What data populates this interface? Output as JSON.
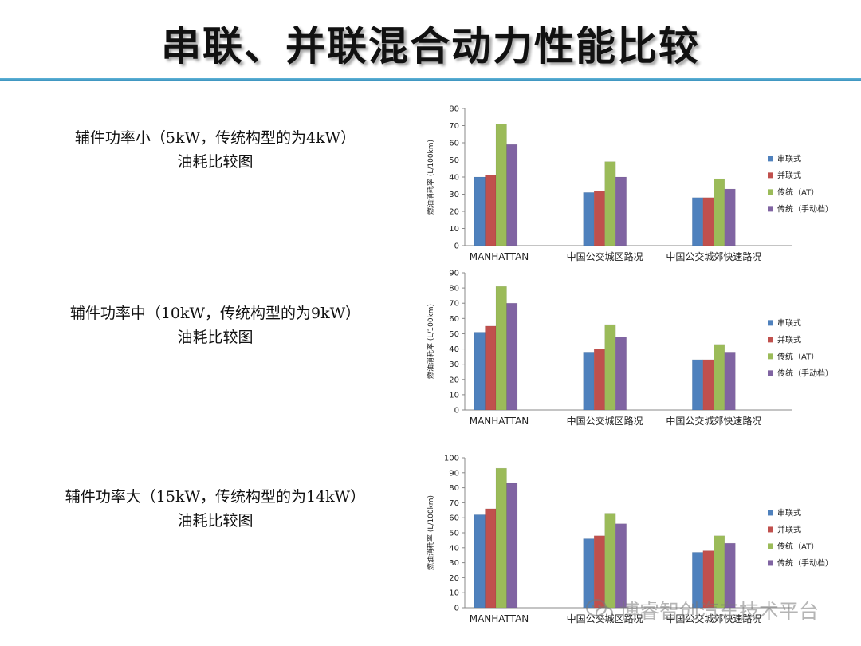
{
  "slide": {
    "title": "串联、并联混合动力性能比较",
    "captions": [
      {
        "line1": "辅件功率小（5kW，传统构型的为4kW）",
        "line2": "油耗比较图"
      },
      {
        "line1": "辅件功率中（10kW，传统构型的为9kW）",
        "line2": "油耗比较图"
      },
      {
        "line1": "辅件功率大（15kW，传统构型的为14kW）",
        "line2": "油耗比较图"
      }
    ],
    "watermark": "博睿智创汽车技术平台",
    "watermark_icon": "wechat-icon"
  },
  "colors": {
    "series": [
      "#4f81bd",
      "#c0504d",
      "#9bbb59",
      "#8064a2"
    ],
    "rule": "#3a95c4"
  },
  "chart_data": [
    {
      "type": "bar",
      "categories": [
        "MANHATTAN",
        "中国公交城区路况",
        "中国公交城郊快速路况"
      ],
      "series": [
        {
          "name": "串联式",
          "values": [
            40,
            31,
            28
          ]
        },
        {
          "name": "并联式",
          "values": [
            41,
            32,
            28
          ]
        },
        {
          "name": "传统（AT）",
          "values": [
            71,
            49,
            39
          ]
        },
        {
          "name": "传统（手动档）",
          "values": [
            59,
            40,
            33
          ]
        }
      ],
      "ylabel": "燃油消耗率 (L/100km)",
      "ylim": [
        0,
        80
      ],
      "ystep": 10,
      "yticks": [
        "0",
        "10",
        "20",
        "30",
        "40",
        "50",
        "60",
        "70",
        "80"
      ],
      "grid": false,
      "legend": "right"
    },
    {
      "type": "bar",
      "categories": [
        "MANHATTAN",
        "中国公交城区路况",
        "中国公交城郊快速路况"
      ],
      "series": [
        {
          "name": "串联式",
          "values": [
            51,
            38,
            33
          ]
        },
        {
          "name": "并联式",
          "values": [
            55,
            40,
            33
          ]
        },
        {
          "name": "传统（AT）",
          "values": [
            81,
            56,
            43
          ]
        },
        {
          "name": "传统（手动档）",
          "values": [
            70,
            48,
            38
          ]
        }
      ],
      "ylabel": "燃油消耗率 (L/100km)",
      "ylim": [
        0,
        90
      ],
      "ystep": 10,
      "yticks": [
        "0",
        "10",
        "20",
        "30",
        "40",
        "50",
        "60",
        "70",
        "80",
        "90"
      ],
      "grid": false,
      "legend": "right"
    },
    {
      "type": "bar",
      "categories": [
        "MANHATTAN",
        "中国公交城区路况",
        "中国公交城郊快速路况"
      ],
      "series": [
        {
          "name": "串联式",
          "values": [
            62,
            46,
            37
          ]
        },
        {
          "name": "并联式",
          "values": [
            66,
            48,
            38
          ]
        },
        {
          "name": "传统（AT）",
          "values": [
            93,
            63,
            48
          ]
        },
        {
          "name": "传统（手动档）",
          "values": [
            83,
            56,
            43
          ]
        }
      ],
      "ylabel": "燃油消耗率 (L/100km)",
      "ylim": [
        0,
        100
      ],
      "ystep": 10,
      "yticks": [
        "0",
        "10",
        "20",
        "30",
        "40",
        "50",
        "60",
        "70",
        "80",
        "90",
        "100"
      ],
      "grid": false,
      "legend": "right"
    }
  ]
}
